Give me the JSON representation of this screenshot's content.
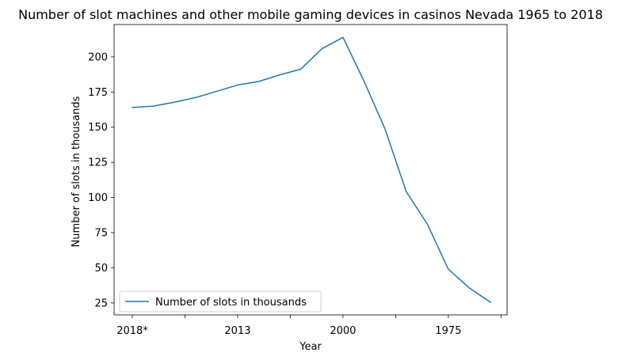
{
  "chart_data": {
    "type": "line",
    "title": "Number of slot machines and other mobile gaming devices in casinos Nevada 1965 to 2018",
    "xlabel": "Year",
    "ylabel": "Number of slots in thousands",
    "x_tick_labels": [
      "2018*",
      "",
      "2013",
      "",
      "2000",
      "",
      "1975",
      ""
    ],
    "y_ticks": [
      25,
      50,
      75,
      100,
      125,
      150,
      175,
      200
    ],
    "ylim": [
      16.5,
      223
    ],
    "grid": false,
    "legend_position": "lower-left",
    "line_color": "#1f77b4",
    "series": [
      {
        "name": "Number of slots in thousands",
        "values": [
          164,
          165,
          167.8,
          171,
          175.5,
          180,
          182.5,
          187.2,
          191.3,
          205.8,
          213.9,
          182.7,
          148.5,
          104.2,
          81.2,
          49,
          35.6,
          25.5
        ]
      }
    ]
  }
}
